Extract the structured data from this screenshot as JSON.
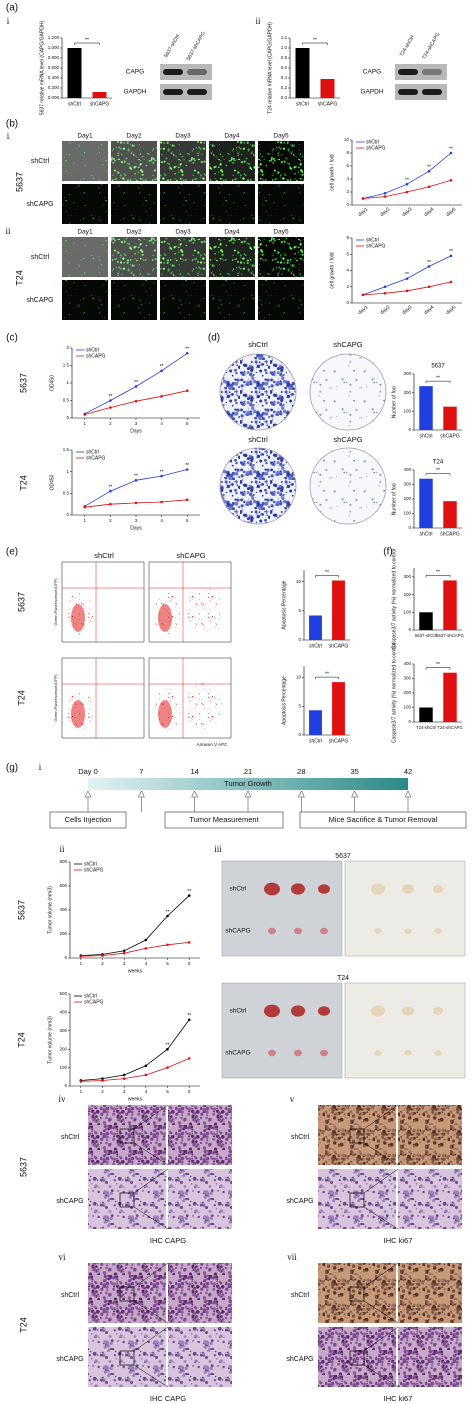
{
  "figure": {
    "panels": [
      "(a)",
      "(b)",
      "(c)",
      "(d)",
      "(e)",
      "(f)",
      "(g)"
    ],
    "sub": [
      "i",
      "ii",
      "iii",
      "iv",
      "v",
      "vi",
      "vii"
    ],
    "lines": [
      "5637",
      "T24"
    ],
    "groups": [
      "shCtrl",
      "shCAPG"
    ],
    "blots": [
      {
        "lanes": [
          "5637-shCtrl",
          "5637-shCAPG"
        ],
        "rows": [
          "CAPG",
          "GAPDH"
        ]
      },
      {
        "lanes": [
          "T24-shCtrl",
          "T24-shCAPG"
        ],
        "rows": [
          "CAPG",
          "GAPDH"
        ]
      }
    ],
    "days": [
      "Day1",
      "Day2",
      "Day3",
      "Day4",
      "Day5"
    ],
    "flow_axes": {
      "y": "Green Fluorescence(GFP)",
      "x": "Annexin V APC"
    },
    "timeline": {
      "ticks": [
        "Day 0",
        "7",
        "14",
        "21",
        "28",
        "35",
        "42"
      ],
      "bar": "Tumor Growth",
      "events": [
        "Cells Injection",
        "Tumor Measurement",
        "Mice Sacrifice & Tumor Removal"
      ]
    },
    "ihc": [
      "IHC CAPG",
      "IHC ki67"
    ]
  },
  "chart_data": [
    {
      "type": "bar",
      "ylabel": "5637 relative mRNA level (CAPG/GAPDH)",
      "categories": [
        "shCtrl",
        "shCAPG"
      ],
      "values": [
        1.0,
        0.12
      ],
      "colors": [
        "#000000",
        "#e01010"
      ],
      "ylim": [
        0,
        1.2
      ],
      "yticks": [
        {
          "value": 0,
          "label": "0.000"
        },
        {
          "value": 0.2,
          "label": "0.200"
        },
        {
          "value": 0.4,
          "label": "0.400"
        },
        {
          "value": 0.6,
          "label": "0.600"
        },
        {
          "value": 0.8,
          "label": "0.800"
        },
        {
          "value": 1,
          "label": "1.000"
        },
        {
          "value": 1.2,
          "label": "1.200"
        }
      ],
      "annotation": "**"
    },
    {
      "type": "bar",
      "ylabel": "T24 relative mRNA level (CAPG/GAPDH)",
      "categories": [
        "shCtrl",
        "shCAPG"
      ],
      "values": [
        1.0,
        0.38
      ],
      "colors": [
        "#000000",
        "#e01010"
      ],
      "ylim": [
        0,
        1.2
      ],
      "yticks": [
        {
          "value": 0,
          "label": "0.0"
        },
        0.2,
        0.4,
        0.6,
        0.8,
        {
          "value": 1,
          "label": "1.0"
        },
        1.2
      ],
      "annotation": "**"
    },
    {
      "type": "line",
      "ylabel": "cell growth / fold",
      "categories": [
        "day1",
        "day2",
        "day3",
        "day4",
        "day5"
      ],
      "series": [
        {
          "name": "shCtrl",
          "color": "#1f3fe0",
          "values": [
            1,
            1.8,
            3.2,
            5.2,
            8
          ]
        },
        {
          "name": "shCAPG",
          "color": "#e01010",
          "values": [
            1,
            1.3,
            2,
            2.8,
            3.8
          ]
        }
      ],
      "ylim": [
        0,
        10
      ],
      "yticks": [
        0,
        2,
        4,
        6,
        8,
        10
      ],
      "annotation": "**"
    },
    {
      "type": "line",
      "ylabel": "cell growth / fold",
      "categories": [
        "day1",
        "day2",
        "day3",
        "day4",
        "day5"
      ],
      "series": [
        {
          "name": "shCtrl",
          "color": "#1f3fe0",
          "values": [
            1,
            2,
            3,
            4.5,
            5.8
          ]
        },
        {
          "name": "shCAPG",
          "color": "#e01010",
          "values": [
            1,
            1.2,
            1.5,
            2,
            2.6
          ]
        }
      ],
      "ylim": [
        0,
        8
      ],
      "yticks": [
        0,
        2,
        4,
        6,
        8
      ],
      "annotation": "**"
    },
    {
      "type": "line",
      "ylabel": "OD450",
      "xlabel": "Days",
      "x": [
        1,
        2,
        3,
        4,
        5
      ],
      "xlim": [
        0.5,
        5.5
      ],
      "xticks": [
        1,
        2,
        3,
        4,
        5
      ],
      "series": [
        {
          "name": "shCtrl",
          "color": "#1f3fe0",
          "values": [
            0.12,
            0.5,
            0.9,
            1.35,
            1.85
          ]
        },
        {
          "name": "shCAPG",
          "color": "#e01010",
          "values": [
            0.1,
            0.3,
            0.48,
            0.62,
            0.78
          ]
        }
      ],
      "ylim": [
        0,
        2
      ],
      "yticks": [
        0,
        0.5,
        1,
        1.5,
        2
      ],
      "annotation": "**"
    },
    {
      "type": "line",
      "ylabel": "OD450",
      "xlabel": "Days",
      "x": [
        1,
        2,
        3,
        4,
        5
      ],
      "xlim": [
        0.5,
        5.5
      ],
      "xticks": [
        1,
        2,
        3,
        4,
        5
      ],
      "series": [
        {
          "name": "shCtrl",
          "color": "#1f3fe0",
          "values": [
            0.2,
            0.55,
            0.8,
            0.9,
            1.05
          ]
        },
        {
          "name": "shCAPG",
          "color": "#e01010",
          "values": [
            0.18,
            0.25,
            0.28,
            0.3,
            0.35
          ]
        }
      ],
      "ylim": [
        0,
        1.5
      ],
      "yticks": [
        0,
        0.5,
        1,
        1.5
      ],
      "annotation": "**"
    },
    {
      "type": "bar",
      "title": "5637",
      "ylabel": "Number of foci",
      "categories": [
        "shCtrl",
        "shCAPG"
      ],
      "values": [
        235,
        125
      ],
      "colors": [
        "#1f3fe0",
        "#e01010"
      ],
      "ylim": [
        0,
        300
      ],
      "yticks": [
        0,
        100,
        200,
        300
      ],
      "annotation": "**"
    },
    {
      "type": "bar",
      "title": "T24",
      "ylabel": "Number of foci",
      "categories": [
        "shCtrl",
        "shCAPG"
      ],
      "values": [
        340,
        185
      ],
      "colors": [
        "#1f3fe0",
        "#e01010"
      ],
      "ylim": [
        0,
        400
      ],
      "yticks": [
        0,
        100,
        200,
        300,
        400
      ],
      "annotation": "**"
    },
    {
      "type": "bar",
      "ylabel": "Apoptosis Percentage",
      "categories": [
        "shCtrl",
        "shCAPG"
      ],
      "values": [
        4.2,
        10.2
      ],
      "colors": [
        "#1f3fe0",
        "#e01010"
      ],
      "ylim": [
        0,
        12
      ],
      "yticks": [
        0,
        5,
        10
      ],
      "annotation": "**"
    },
    {
      "type": "bar",
      "ylabel": "Apoptosis Percentage",
      "categories": [
        "shCtrl",
        "shCAPG"
      ],
      "values": [
        4.3,
        9.2
      ],
      "colors": [
        "#1f3fe0",
        "#e01010"
      ],
      "ylim": [
        0,
        12
      ],
      "yticks": [
        0,
        5,
        10
      ],
      "annotation": "**"
    },
    {
      "type": "bar",
      "ylabel": "Caspase3/7 activity (%) normalized to control",
      "categories": [
        "5637-shCtrl",
        "5637-shCAPG"
      ],
      "values": [
        100,
        280
      ],
      "colors": [
        "#000000",
        "#e01010"
      ],
      "ylim": [
        0,
        350
      ],
      "yticks": [
        0,
        100,
        200,
        300
      ],
      "annotation": "**"
    },
    {
      "type": "bar",
      "ylabel": "Caspase3/7 activity (%) normalized to control",
      "categories": [
        "T24-shCtrl",
        "T24-shCAPG"
      ],
      "values": [
        100,
        340
      ],
      "colors": [
        "#000000",
        "#e01010"
      ],
      "ylim": [
        0,
        400
      ],
      "yticks": [
        0,
        100,
        200,
        300,
        400
      ],
      "annotation": "**"
    },
    {
      "type": "line",
      "ylabel": "Tumor volume (mm3)",
      "xlabel": "weeks",
      "x": [
        1,
        2,
        3,
        4,
        5,
        6
      ],
      "xlim": [
        0.5,
        6.5
      ],
      "xticks": [
        1,
        2,
        3,
        4,
        5,
        6
      ],
      "series": [
        {
          "name": "shCtrl",
          "color": "#000000",
          "values": [
            20,
            30,
            60,
            150,
            350,
            520
          ]
        },
        {
          "name": "shCAPG",
          "color": "#e01010",
          "values": [
            15,
            20,
            40,
            80,
            110,
            130
          ]
        }
      ],
      "ylim": [
        0,
        800
      ],
      "yticks": [
        0,
        200,
        400,
        600,
        800
      ],
      "annotation": "**"
    },
    {
      "type": "line",
      "ylabel": "Tumor volume (mm3)",
      "xlabel": "weeks",
      "x": [
        1,
        2,
        3,
        4,
        5,
        6
      ],
      "xlim": [
        0.5,
        6.5
      ],
      "xticks": [
        1,
        2,
        3,
        4,
        5,
        6
      ],
      "series": [
        {
          "name": "shCtrl",
          "color": "#000000",
          "values": [
            30,
            40,
            60,
            110,
            200,
            360
          ]
        },
        {
          "name": "shCAPG",
          "color": "#e01010",
          "values": [
            25,
            30,
            40,
            60,
            100,
            150
          ]
        }
      ],
      "ylim": [
        0,
        500
      ],
      "yticks": [
        0,
        100,
        200,
        300,
        400,
        500
      ],
      "annotation": "**"
    }
  ]
}
